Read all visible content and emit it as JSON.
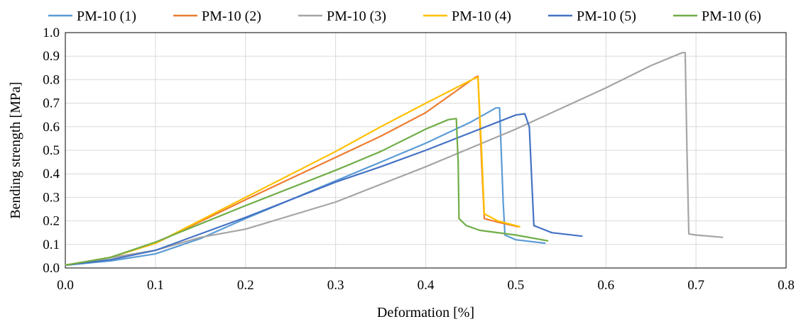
{
  "chart_data": {
    "type": "line",
    "xlabel": "Deformation [%]",
    "ylabel": "Bending strength [MPa]",
    "xlim": [
      0.0,
      0.8
    ],
    "ylim": [
      0.0,
      1.0
    ],
    "xticks": [
      "0.0",
      "0.1",
      "0.2",
      "0.3",
      "0.4",
      "0.5",
      "0.6",
      "0.7",
      "0.8"
    ],
    "yticks": [
      "0.0",
      "0.1",
      "0.2",
      "0.3",
      "0.4",
      "0.5",
      "0.6",
      "0.7",
      "0.8",
      "0.9",
      "1.0"
    ],
    "grid": true,
    "legend_position": "top",
    "series": [
      {
        "name": "PM-10 (1)",
        "color": "#5B9BD5",
        "points": [
          [
            0.0,
            0.012
          ],
          [
            0.05,
            0.03
          ],
          [
            0.1,
            0.06
          ],
          [
            0.15,
            0.125
          ],
          [
            0.2,
            0.21
          ],
          [
            0.3,
            0.37
          ],
          [
            0.35,
            0.45
          ],
          [
            0.4,
            0.53
          ],
          [
            0.45,
            0.62
          ],
          [
            0.478,
            0.68
          ],
          [
            0.482,
            0.68
          ],
          [
            0.486,
            0.28
          ],
          [
            0.488,
            0.14
          ],
          [
            0.5,
            0.12
          ],
          [
            0.533,
            0.105
          ]
        ]
      },
      {
        "name": "PM-10 (2)",
        "color": "#ED7D31",
        "points": [
          [
            0.0,
            0.012
          ],
          [
            0.05,
            0.045
          ],
          [
            0.1,
            0.105
          ],
          [
            0.2,
            0.29
          ],
          [
            0.3,
            0.47
          ],
          [
            0.35,
            0.56
          ],
          [
            0.4,
            0.66
          ],
          [
            0.455,
            0.81
          ],
          [
            0.458,
            0.815
          ],
          [
            0.462,
            0.45
          ],
          [
            0.465,
            0.21
          ],
          [
            0.48,
            0.195
          ],
          [
            0.503,
            0.175
          ]
        ]
      },
      {
        "name": "PM-10 (3)",
        "color": "#A5A5A5",
        "points": [
          [
            0.0,
            0.012
          ],
          [
            0.1,
            0.075
          ],
          [
            0.15,
            0.13
          ],
          [
            0.2,
            0.165
          ],
          [
            0.3,
            0.28
          ],
          [
            0.4,
            0.43
          ],
          [
            0.5,
            0.59
          ],
          [
            0.6,
            0.765
          ],
          [
            0.65,
            0.86
          ],
          [
            0.685,
            0.915
          ],
          [
            0.688,
            0.915
          ],
          [
            0.69,
            0.5
          ],
          [
            0.692,
            0.145
          ],
          [
            0.7,
            0.14
          ],
          [
            0.73,
            0.13
          ]
        ]
      },
      {
        "name": "PM-10 (4)",
        "color": "#FFC000",
        "points": [
          [
            0.0,
            0.012
          ],
          [
            0.05,
            0.045
          ],
          [
            0.1,
            0.105
          ],
          [
            0.2,
            0.3
          ],
          [
            0.3,
            0.495
          ],
          [
            0.35,
            0.6
          ],
          [
            0.4,
            0.7
          ],
          [
            0.454,
            0.805
          ],
          [
            0.458,
            0.81
          ],
          [
            0.462,
            0.5
          ],
          [
            0.465,
            0.23
          ],
          [
            0.48,
            0.2
          ],
          [
            0.505,
            0.175
          ]
        ]
      },
      {
        "name": "PM-10 (5)",
        "color": "#4472C4",
        "points": [
          [
            0.0,
            0.012
          ],
          [
            0.05,
            0.035
          ],
          [
            0.1,
            0.075
          ],
          [
            0.2,
            0.215
          ],
          [
            0.3,
            0.365
          ],
          [
            0.35,
            0.43
          ],
          [
            0.4,
            0.5
          ],
          [
            0.45,
            0.575
          ],
          [
            0.5,
            0.65
          ],
          [
            0.51,
            0.655
          ],
          [
            0.515,
            0.6
          ],
          [
            0.518,
            0.35
          ],
          [
            0.52,
            0.18
          ],
          [
            0.54,
            0.15
          ],
          [
            0.574,
            0.135
          ]
        ]
      },
      {
        "name": "PM-10 (6)",
        "color": "#70AD47",
        "points": [
          [
            0.0,
            0.012
          ],
          [
            0.05,
            0.045
          ],
          [
            0.1,
            0.11
          ],
          [
            0.2,
            0.265
          ],
          [
            0.3,
            0.415
          ],
          [
            0.35,
            0.495
          ],
          [
            0.4,
            0.59
          ],
          [
            0.425,
            0.63
          ],
          [
            0.434,
            0.635
          ],
          [
            0.436,
            0.45
          ],
          [
            0.437,
            0.21
          ],
          [
            0.445,
            0.18
          ],
          [
            0.46,
            0.16
          ],
          [
            0.5,
            0.14
          ],
          [
            0.536,
            0.115
          ]
        ]
      }
    ]
  }
}
